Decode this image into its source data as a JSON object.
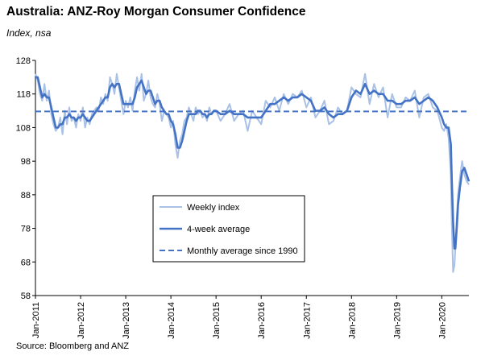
{
  "title": "Australia: ANZ-Roy Morgan Consumer Confidence",
  "subtitle": "Index, nsa",
  "source": "Source: Bloomberg and ANZ",
  "chart_data": {
    "type": "line",
    "ylim": [
      58,
      128
    ],
    "yticks": [
      58,
      68,
      78,
      88,
      98,
      108,
      118,
      128
    ],
    "xlim": [
      2011.0,
      2020.6
    ],
    "xticks": [
      {
        "x": 2011,
        "label": "Jan-2011"
      },
      {
        "x": 2012,
        "label": "Jan-2012"
      },
      {
        "x": 2013,
        "label": "Jan-2013"
      },
      {
        "x": 2014,
        "label": "Jan-2014"
      },
      {
        "x": 2015,
        "label": "Jan-2015"
      },
      {
        "x": 2016,
        "label": "Jan-2016"
      },
      {
        "x": 2017,
        "label": "Jan-2017"
      },
      {
        "x": 2018,
        "label": "Jan-2018"
      },
      {
        "x": 2019,
        "label": "Jan-2019"
      },
      {
        "x": 2020,
        "label": "Jan-2020"
      }
    ],
    "grid": false,
    "legend": "inside-center",
    "series": [
      {
        "name": "Weekly index",
        "color": "#a9c1e6",
        "style": "solid",
        "x": [
          2011.0,
          2011.05,
          2011.1,
          2011.15,
          2011.2,
          2011.25,
          2011.3,
          2011.35,
          2011.4,
          2011.45,
          2011.5,
          2011.55,
          2011.6,
          2011.65,
          2011.7,
          2011.75,
          2011.8,
          2011.85,
          2011.9,
          2011.95,
          2012.0,
          2012.05,
          2012.1,
          2012.15,
          2012.2,
          2012.25,
          2012.3,
          2012.35,
          2012.4,
          2012.45,
          2012.5,
          2012.55,
          2012.6,
          2012.65,
          2012.7,
          2012.75,
          2012.8,
          2012.85,
          2012.9,
          2012.95,
          2013.0,
          2013.05,
          2013.1,
          2013.15,
          2013.2,
          2013.25,
          2013.3,
          2013.35,
          2013.4,
          2013.45,
          2013.5,
          2013.55,
          2013.6,
          2013.65,
          2013.7,
          2013.75,
          2013.8,
          2013.85,
          2013.9,
          2013.95,
          2014.0,
          2014.05,
          2014.1,
          2014.15,
          2014.2,
          2014.25,
          2014.3,
          2014.35,
          2014.4,
          2014.45,
          2014.5,
          2014.55,
          2014.6,
          2014.65,
          2014.7,
          2014.75,
          2014.8,
          2014.85,
          2014.9,
          2014.95,
          2015.0,
          2015.1,
          2015.2,
          2015.3,
          2015.4,
          2015.5,
          2015.6,
          2015.7,
          2015.8,
          2015.9,
          2016.0,
          2016.1,
          2016.2,
          2016.3,
          2016.4,
          2016.5,
          2016.6,
          2016.7,
          2016.8,
          2016.9,
          2017.0,
          2017.1,
          2017.2,
          2017.3,
          2017.4,
          2017.5,
          2017.6,
          2017.7,
          2017.8,
          2017.9,
          2018.0,
          2018.1,
          2018.2,
          2018.3,
          2018.4,
          2018.5,
          2018.6,
          2018.7,
          2018.8,
          2018.9,
          2019.0,
          2019.1,
          2019.2,
          2019.3,
          2019.4,
          2019.5,
          2019.6,
          2019.7,
          2019.8,
          2019.9,
          2020.0,
          2020.05,
          2020.1,
          2020.15,
          2020.2,
          2020.22,
          2020.25,
          2020.28,
          2020.3,
          2020.33,
          2020.36,
          2020.4,
          2020.45,
          2020.5,
          2020.55,
          2020.6
        ],
        "values": [
          124,
          122,
          118,
          116,
          121,
          116,
          119,
          112,
          109,
          107,
          108,
          111,
          106,
          113,
          109,
          114,
          110,
          111,
          108,
          112,
          110,
          114,
          108,
          111,
          109,
          112,
          113,
          114,
          113,
          117,
          115,
          118,
          116,
          123,
          121,
          118,
          124,
          120,
          116,
          112,
          116,
          114,
          117,
          113,
          119,
          123,
          119,
          124,
          116,
          118,
          122,
          117,
          115,
          114,
          118,
          115,
          110,
          113,
          112,
          111,
          108,
          110,
          103,
          99,
          104,
          106,
          110,
          111,
          114,
          112,
          110,
          114,
          112,
          113,
          111,
          112,
          110,
          114,
          112,
          113,
          113,
          110,
          112,
          115,
          110,
          112,
          113,
          107,
          113,
          111,
          109,
          116,
          114,
          117,
          113,
          118,
          115,
          118,
          117,
          119,
          114,
          117,
          111,
          113,
          116,
          109,
          110,
          114,
          112,
          113,
          120,
          118,
          117,
          124,
          115,
          121,
          117,
          120,
          111,
          118,
          114,
          114,
          117,
          116,
          119,
          111,
          117,
          118,
          114,
          113,
          108,
          107,
          109,
          105,
          94,
          80,
          65,
          67,
          72,
          81,
          88,
          93,
          98,
          94,
          92,
          91
        ]
      },
      {
        "name": "4-week average",
        "color": "#4472c4",
        "style": "solid",
        "x": [
          2011.0,
          2011.05,
          2011.1,
          2011.15,
          2011.2,
          2011.25,
          2011.3,
          2011.35,
          2011.4,
          2011.45,
          2011.5,
          2011.55,
          2011.6,
          2011.65,
          2011.7,
          2011.75,
          2011.8,
          2011.85,
          2011.9,
          2011.95,
          2012.0,
          2012.05,
          2012.1,
          2012.15,
          2012.2,
          2012.25,
          2012.3,
          2012.35,
          2012.4,
          2012.45,
          2012.5,
          2012.55,
          2012.6,
          2012.65,
          2012.7,
          2012.75,
          2012.8,
          2012.85,
          2012.9,
          2012.95,
          2013.0,
          2013.05,
          2013.1,
          2013.15,
          2013.2,
          2013.25,
          2013.3,
          2013.35,
          2013.4,
          2013.45,
          2013.5,
          2013.55,
          2013.6,
          2013.65,
          2013.7,
          2013.75,
          2013.8,
          2013.85,
          2013.9,
          2013.95,
          2014.0,
          2014.05,
          2014.1,
          2014.15,
          2014.2,
          2014.25,
          2014.3,
          2014.35,
          2014.4,
          2014.45,
          2014.5,
          2014.55,
          2014.6,
          2014.65,
          2014.7,
          2014.75,
          2014.8,
          2014.85,
          2014.9,
          2014.95,
          2015.0,
          2015.1,
          2015.2,
          2015.3,
          2015.4,
          2015.5,
          2015.6,
          2015.7,
          2015.8,
          2015.9,
          2016.0,
          2016.1,
          2016.2,
          2016.3,
          2016.4,
          2016.5,
          2016.6,
          2016.7,
          2016.8,
          2016.9,
          2017.0,
          2017.1,
          2017.2,
          2017.3,
          2017.4,
          2017.5,
          2017.6,
          2017.7,
          2017.8,
          2017.9,
          2018.0,
          2018.1,
          2018.2,
          2018.3,
          2018.4,
          2018.5,
          2018.6,
          2018.7,
          2018.8,
          2018.9,
          2019.0,
          2019.1,
          2019.2,
          2019.3,
          2019.4,
          2019.5,
          2019.6,
          2019.7,
          2019.8,
          2019.9,
          2020.0,
          2020.05,
          2020.1,
          2020.15,
          2020.2,
          2020.22,
          2020.25,
          2020.28,
          2020.3,
          2020.33,
          2020.36,
          2020.4,
          2020.45,
          2020.5,
          2020.55,
          2020.6
        ],
        "values": [
          123,
          123,
          120,
          117,
          118,
          117,
          117,
          114,
          111,
          108,
          108,
          109,
          109,
          111,
          111,
          112,
          111,
          111,
          110,
          111,
          111,
          112,
          111,
          110,
          110,
          111,
          112,
          113,
          114,
          115,
          116,
          117,
          117,
          120,
          121,
          120,
          121,
          121,
          118,
          115,
          115,
          115,
          115,
          115,
          117,
          120,
          121,
          122,
          120,
          118,
          119,
          119,
          117,
          115,
          116,
          116,
          114,
          113,
          112,
          112,
          110,
          109,
          106,
          102,
          102,
          104,
          107,
          110,
          112,
          112,
          112,
          112,
          113,
          113,
          112,
          112,
          111,
          112,
          112,
          113,
          113,
          112,
          112,
          113,
          112,
          112,
          112,
          111,
          111,
          111,
          111,
          113,
          115,
          115,
          116,
          117,
          116,
          117,
          117,
          118,
          117,
          116,
          113,
          113,
          114,
          112,
          111,
          112,
          112,
          113,
          117,
          119,
          118,
          121,
          118,
          119,
          118,
          118,
          116,
          116,
          115,
          115,
          116,
          116,
          117,
          115,
          116,
          117,
          116,
          114,
          111,
          109,
          108,
          108,
          103,
          93,
          80,
          72,
          72,
          78,
          85,
          90,
          95,
          96,
          94,
          92
        ]
      },
      {
        "name": "Monthly average since 1990",
        "color": "#4472c4",
        "style": "dashed",
        "x": [
          2011.0,
          2020.6
        ],
        "values": [
          112.8,
          112.8
        ]
      }
    ]
  }
}
